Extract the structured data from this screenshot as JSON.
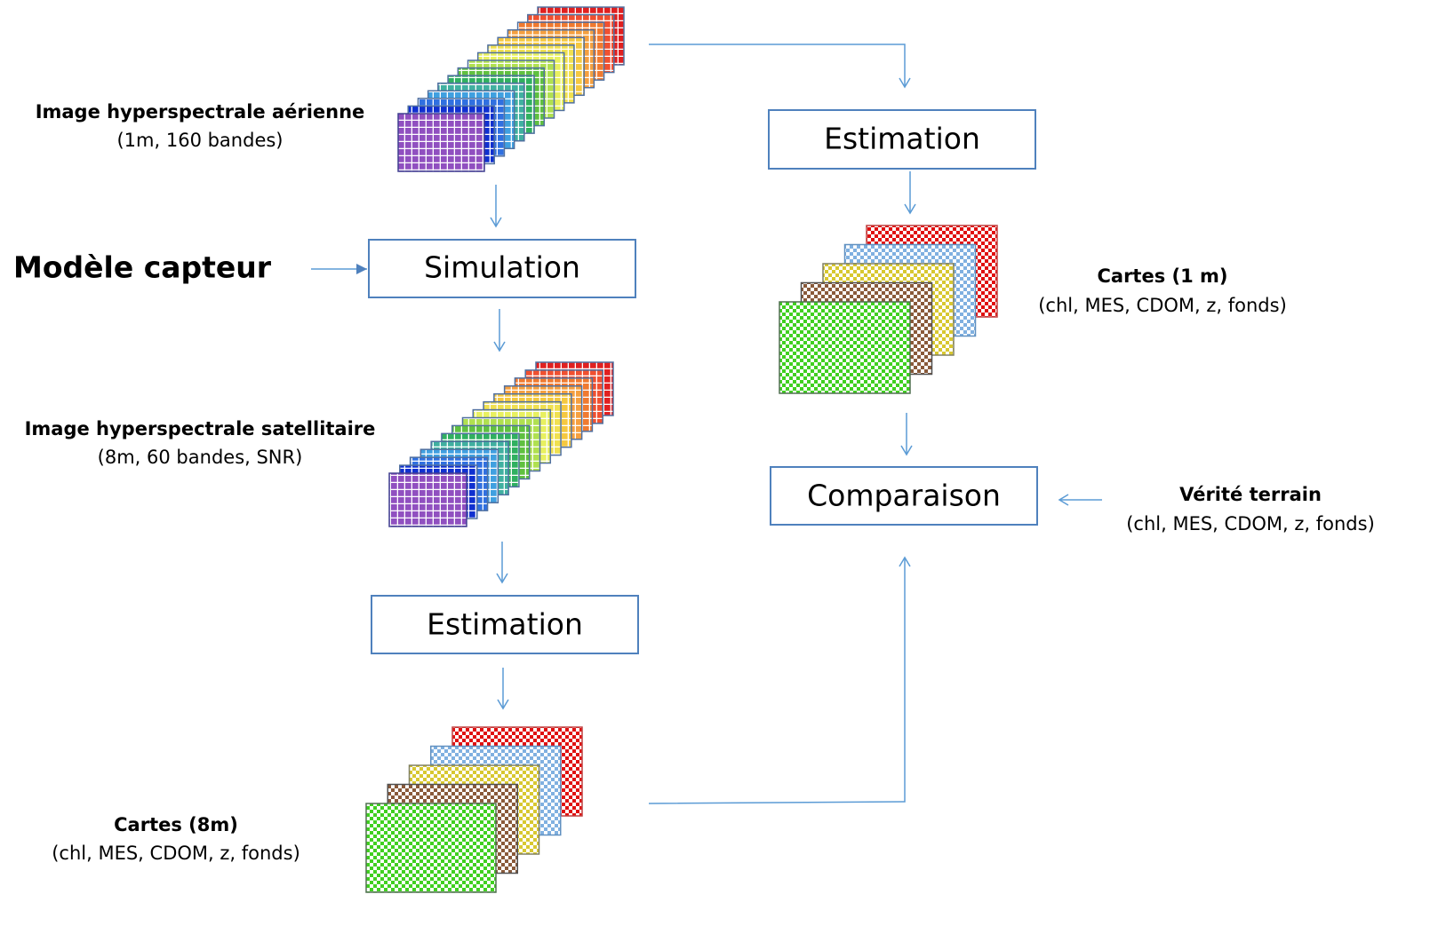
{
  "aerial_image": {
    "title": "Image hyperspectrale aérienne",
    "detail": "(1m, 160 bandes)"
  },
  "sensor_model": "Modèle capteur",
  "simulation": "Simulation",
  "satellite_image": {
    "title": "Image hyperspectrale satellitaire",
    "detail": "(8m, 60 bandes, SNR)"
  },
  "estimation_8m": "Estimation",
  "maps_8m": {
    "title": "Cartes (8m)",
    "detail": "(chl, MES, CDOM, z, fonds)"
  },
  "estimation_1m": "Estimation",
  "maps_1m": {
    "title": "Cartes (1 m)",
    "detail": "(chl, MES, CDOM, z, fonds)"
  },
  "comparison": "Comparaison",
  "ground_truth": {
    "title": "Vérité terrain",
    "detail": "(chl, MES, CDOM, z, fonds)"
  }
}
